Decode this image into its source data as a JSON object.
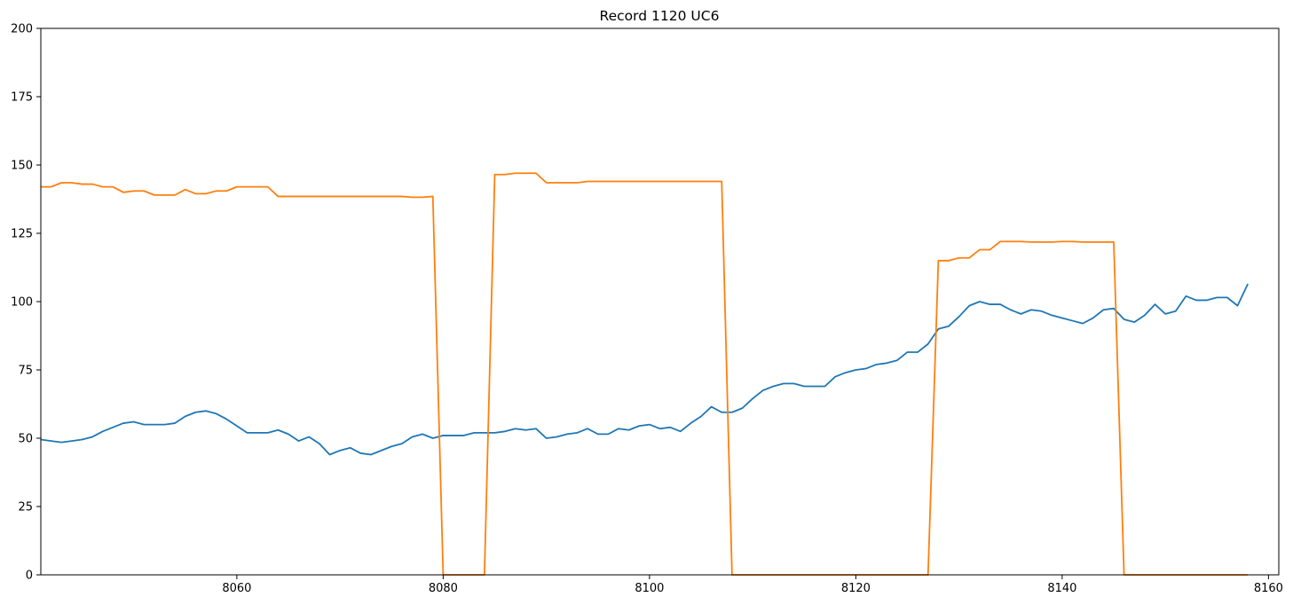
{
  "chart_data": {
    "type": "line",
    "title": "Record 1120 UC6",
    "xlabel": "",
    "ylabel": "",
    "xlim": [
      8041,
      8161
    ],
    "ylim": [
      0,
      200
    ],
    "x_ticks": [
      8060,
      8080,
      8100,
      8120,
      8140,
      8160
    ],
    "y_ticks": [
      0,
      25,
      50,
      75,
      100,
      125,
      150,
      175,
      200
    ],
    "grid": false,
    "legend": "none",
    "x_start": 8041,
    "series": [
      {
        "color": "#1f77b4",
        "values": [
          49.5,
          49,
          48.5,
          49,
          49.5,
          50.5,
          52.5,
          54,
          55.5,
          56,
          55,
          55,
          55,
          55.5,
          58,
          59.5,
          60,
          59,
          57,
          54.5,
          52,
          52,
          52,
          53,
          51.5,
          49,
          50.5,
          48,
          44,
          45.5,
          46.5,
          44.5,
          44,
          45.5,
          47,
          48,
          50.5,
          51.5,
          50,
          51,
          51,
          51,
          52,
          52,
          52,
          52.5,
          53.5,
          53,
          53.5,
          50,
          50.5,
          51.5,
          52,
          53.5,
          51.5,
          51.5,
          53.5,
          53,
          54.5,
          55,
          53.5,
          54,
          52.5,
          55.5,
          58,
          61.5,
          59.5,
          59.5,
          61,
          64.5,
          67.5,
          69,
          70,
          70,
          69,
          69,
          69,
          72.5,
          74,
          75,
          75.5,
          77,
          77.5,
          78.5,
          81.5,
          81.5,
          84.5,
          90,
          91,
          94.5,
          98.5,
          100,
          99,
          99,
          97,
          95.5,
          97,
          96.5,
          95,
          94,
          93,
          92,
          94,
          97,
          97.5,
          93.5,
          92.5,
          95,
          99,
          95.5,
          96.5,
          102,
          100.5,
          100.5,
          101.5,
          101.5,
          98.5,
          106.5
        ]
      },
      {
        "color": "#ff7f0e",
        "values": [
          142,
          142,
          143.5,
          143.5,
          143,
          143,
          142,
          142,
          140,
          140.5,
          140.5,
          139,
          139,
          139,
          141,
          139.5,
          139.5,
          140.5,
          140.5,
          142,
          142,
          142,
          142,
          138.5,
          138.5,
          138.5,
          138.5,
          138.5,
          138.5,
          138.5,
          138.5,
          138.5,
          138.5,
          138.5,
          138.5,
          138.5,
          138.2,
          138.2,
          138.5,
          0,
          0,
          0,
          0,
          0,
          146.5,
          146.5,
          147,
          147,
          147,
          143.5,
          143.5,
          143.5,
          143.5,
          144,
          144,
          144,
          144,
          144,
          144,
          144,
          144,
          144,
          144,
          144,
          144,
          144,
          144,
          0,
          0,
          0,
          0,
          0,
          0,
          0,
          0,
          0,
          0,
          0,
          0,
          0,
          0,
          0,
          0,
          0,
          0,
          0,
          0,
          115,
          115,
          116,
          116,
          119,
          119,
          122,
          122,
          122,
          121.8,
          121.8,
          121.8,
          122,
          122,
          121.8,
          121.8,
          121.8,
          121.8,
          0,
          0,
          0,
          0,
          0,
          0,
          0,
          0,
          0,
          0,
          0,
          0,
          0
        ]
      }
    ]
  }
}
